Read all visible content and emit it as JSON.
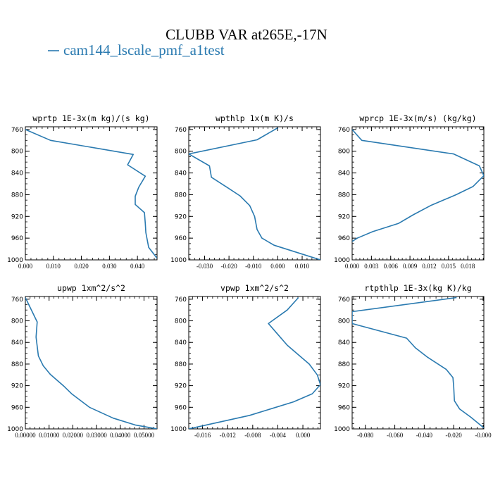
{
  "figure": {
    "title": "CLUBB VAR at265E,-17N",
    "legend_label": "cam144_lscale_pmf_a1test",
    "legend_color": "#2a7ab0",
    "line_color": "#2a7ab0"
  },
  "chart_data": [
    {
      "type": "line",
      "title": "wprtp  1E-3x(m kg)/(s kg)",
      "xlim": [
        0.0,
        0.047
      ],
      "ylim": [
        1000,
        755
      ],
      "xticks": [
        0.0,
        0.01,
        0.02,
        0.03,
        0.04
      ],
      "xtick_labels": [
        "0.000",
        "0.010",
        "0.020",
        "0.030",
        "0.040"
      ],
      "yticks": [
        760,
        800,
        840,
        880,
        920,
        960,
        1000
      ],
      "series": [
        {
          "x": [
            0.0,
            0.009,
            0.0385,
            0.0365,
            0.0428,
            0.0405,
            0.0392,
            0.0392,
            0.0425,
            0.0428,
            0.043,
            0.044,
            0.047
          ],
          "y": [
            760,
            780,
            806,
            825,
            846,
            866,
            883,
            898,
            913,
            933,
            950,
            977,
            997
          ]
        }
      ]
    },
    {
      "type": "line",
      "title": "wpthlp  1x(m K)/s",
      "xlim": [
        -0.0365,
        0.0175
      ],
      "ylim": [
        1000,
        755
      ],
      "xticks": [
        -0.03,
        -0.02,
        -0.01,
        0.0,
        0.01
      ],
      "xtick_labels": [
        "-0.030",
        "-0.020",
        "-0.010",
        "0.000",
        "0.010"
      ],
      "yticks": [
        760,
        800,
        840,
        880,
        920,
        960,
        1000
      ],
      "series": [
        {
          "x": [
            0.0,
            -0.0085,
            -0.0365,
            -0.028,
            -0.0272,
            -0.021,
            -0.0155,
            -0.0115,
            -0.0095,
            -0.0085,
            -0.0065,
            -0.0015,
            0.0175
          ],
          "y": [
            757,
            779,
            805,
            827,
            848,
            866,
            882,
            900,
            920,
            944,
            960,
            973,
            1000
          ]
        }
      ]
    },
    {
      "type": "line",
      "title": "wprcp  1E-3x(m/s) (kg/kg)",
      "xlim": [
        0.0,
        0.0205
      ],
      "ylim": [
        1000,
        755
      ],
      "xticks": [
        0.0,
        0.003,
        0.006,
        0.009,
        0.012,
        0.015,
        0.018
      ],
      "xtick_labels": [
        "0.000",
        "0.003",
        "0.006",
        "0.009",
        "0.012",
        "0.015",
        "0.018"
      ],
      "yticks": [
        760,
        800,
        840,
        880,
        920,
        960,
        1000
      ],
      "series": [
        {
          "x": [
            0.0,
            0.0015,
            0.0158,
            0.0198,
            0.0205,
            0.0188,
            0.0162,
            0.0122,
            0.0095,
            0.0072,
            0.0032,
            0.0008,
            0.0
          ],
          "y": [
            760,
            780,
            805,
            827,
            845,
            865,
            880,
            900,
            917,
            933,
            948,
            960,
            966
          ]
        }
      ]
    },
    {
      "type": "line",
      "title": "upwp  1xm^2/s^2",
      "xlim": [
        0.0,
        0.0555
      ],
      "ylim": [
        1000,
        755
      ],
      "xticks": [
        0.0,
        0.01,
        0.02,
        0.03,
        0.04,
        0.05
      ],
      "xtick_labels": [
        "0.00000",
        "0.01000",
        "0.02000",
        "0.03000",
        "0.04000",
        "0.05000"
      ],
      "yticks": [
        760,
        800,
        840,
        880,
        920,
        960,
        1000
      ],
      "series": [
        {
          "x": [
            0.0,
            0.005,
            0.0045,
            0.0055,
            0.0075,
            0.0105,
            0.016,
            0.0195,
            0.027,
            0.037,
            0.0465,
            0.0555
          ],
          "y": [
            757,
            802,
            830,
            865,
            883,
            899,
            920,
            935,
            960,
            980,
            993,
            1000
          ]
        }
      ]
    },
    {
      "type": "line",
      "title": "vpwp  1xm^2/s^2",
      "xlim": [
        -0.0182,
        0.0028
      ],
      "ylim": [
        1000,
        755
      ],
      "xticks": [
        -0.016,
        -0.012,
        -0.008,
        -0.004,
        0.0
      ],
      "xtick_labels": [
        "-0.016",
        "-0.012",
        "-0.008",
        "-0.004",
        "0.000"
      ],
      "yticks": [
        760,
        800,
        840,
        880,
        920,
        960,
        1000
      ],
      "series": [
        {
          "x": [
            -0.0007,
            -0.0025,
            -0.0055,
            -0.004,
            -0.0025,
            -0.0005,
            0.001,
            0.0023,
            0.0028,
            0.0015,
            -0.0015,
            -0.0085,
            -0.0182
          ],
          "y": [
            757,
            780,
            805,
            825,
            845,
            865,
            880,
            900,
            918,
            935,
            950,
            975,
            1000
          ]
        }
      ]
    },
    {
      "type": "line",
      "title": "rtpthlp  1E-3x(kg K)/kg",
      "xlim": [
        -0.089,
        0.0005
      ],
      "ylim": [
        1000,
        755
      ],
      "xticks": [
        -0.08,
        -0.06,
        -0.04,
        -0.02,
        0.0
      ],
      "xtick_labels": [
        "-0.080",
        "-0.060",
        "-0.040",
        "-0.020",
        "-0.000"
      ],
      "yticks": [
        760,
        800,
        840,
        880,
        920,
        960,
        1000
      ],
      "series": [
        {
          "x": [
            -0.018,
            -0.089,
            -0.089,
            -0.052,
            -0.046,
            -0.038,
            -0.025,
            -0.0205,
            -0.02,
            -0.0195,
            -0.016,
            -0.0085,
            0.0005
          ],
          "y": [
            757,
            783,
            805,
            832,
            850,
            867,
            890,
            905,
            922,
            948,
            963,
            978,
            998
          ]
        }
      ]
    }
  ]
}
